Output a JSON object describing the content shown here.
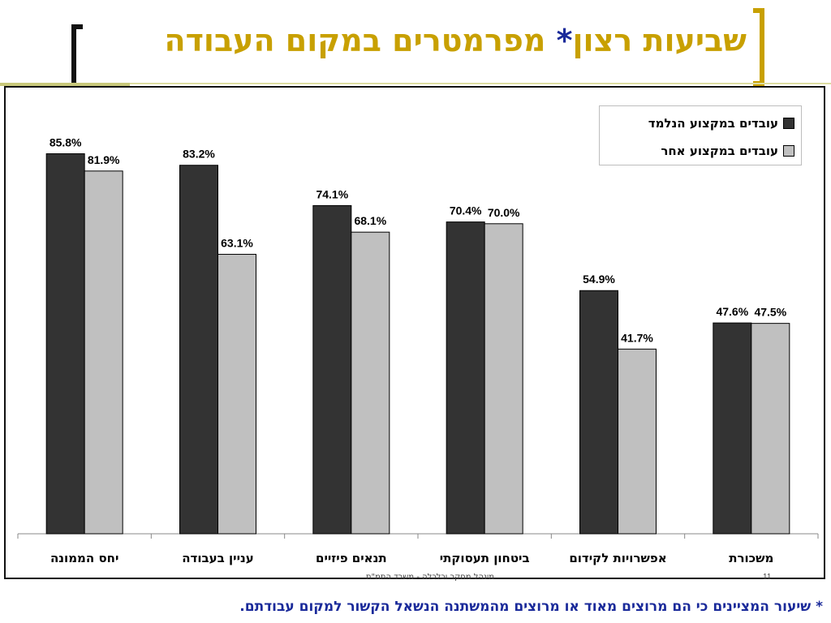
{
  "slide": {
    "title": "שביעות רצון",
    "title_star": "*",
    "title_rest": " מפרמטרים במקום העבודה",
    "footer_center": "מינהל מחקר וכלכלה - משרד התמ\"ת",
    "page_number": "11",
    "footnote": "* שיעור המציינים כי הם מרוצים מאוד או מרוצים מהמשתנה הנשאל הקשור למקום עבודתם."
  },
  "colors": {
    "title": "#c8a000",
    "series_dark": "#333333",
    "series_light": "#c0c0c0",
    "footnote": "#1a2a9a"
  },
  "chart_data": {
    "type": "bar",
    "categories": [
      "יחס הממונה",
      "עניין בעבודה",
      "תנאים פיזיים",
      "ביטחון תעסוקתי",
      "אפשרויות לקידום",
      "משכורת"
    ],
    "series": [
      {
        "name": "עובדים במקצוע הנלמד",
        "values": [
          85.8,
          83.2,
          74.1,
          70.4,
          54.9,
          47.6
        ],
        "labels": [
          "85.8%",
          "83.2%",
          "74.1%",
          "70.4%",
          "54.9%",
          "47.6%"
        ],
        "color": "#333333"
      },
      {
        "name": "עובדים במקצוע אחר",
        "values": [
          81.9,
          63.1,
          68.1,
          70.0,
          41.7,
          47.5
        ],
        "labels": [
          "81.9%",
          "63.1%",
          "68.1%",
          "70.0%",
          "41.7%",
          "47.5%"
        ],
        "color": "#c0c0c0"
      }
    ],
    "ylim": [
      0,
      100
    ],
    "unit": "%",
    "legend_position": "top-right",
    "grid": false
  }
}
